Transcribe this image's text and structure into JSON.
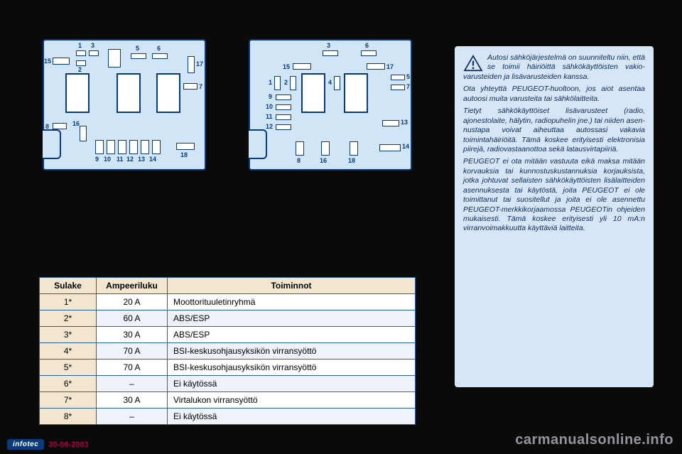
{
  "table": {
    "headers": [
      "Sulake",
      "Ampeeriluku",
      "Toiminnot"
    ],
    "rows": [
      [
        "1*",
        "20 A",
        "Moottorituuletinryhmä"
      ],
      [
        "2*",
        "60 A",
        "ABS/ESP"
      ],
      [
        "3*",
        "30 A",
        "ABS/ESP"
      ],
      [
        "4*",
        "70 A",
        "BSI-keskusohjausyksikön virransyöttö"
      ],
      [
        "5*",
        "70 A",
        "BSI-keskusohjausyksikön virransyöttö"
      ],
      [
        "6*",
        "–",
        "Ei käytössä"
      ],
      [
        "7*",
        "30 A",
        "Virtalukon virransyöttö"
      ],
      [
        "8*",
        "–",
        "Ei käytössä"
      ]
    ]
  },
  "infobox": {
    "p1": "Autosi sähköjärjestelmä on suunniteltu niin, että se toimii häiriöittä sähkökäyttöisten vakio­varusteiden ja lisävarus­teiden kanssa.",
    "p2": "Ota yhteyttä PEUGEOT-huoltoon, jos aiot asentaa autoosi muita varusteita tai sähkölaitteita.",
    "p3": "Tietyt sähkökäyttöiset lisävarus­teet (radio, ajonestolaite, hälytin, radiopuhelin jne.) tai niiden asen­nustapa voivat aiheuttaa autossa­si vakavia toimintahäiriöitä. Tämä koskee erityisesti elektronisia pii­rejä, radiovastaanottoa sekä latausvirtapiiriä.",
    "p4": "PEUGEOT ei ota mitään vastuuta eikä maksa mitään korvauksia tai kunnostuskustannuksia korjauk­sista, jotka johtuvat sellaisten sähkökäyttöisten lisälaitteiden asennuksesta tai käytöstä, joita PEUGEOT ei ole toimittanut tai suositellut ja joita ei ole asennettu PEUGEOT-merkkikorjaamossa PEUGEOTin ohjeiden mukaisesti. Tämä koskee erityisesti yli 10 mA:n virranvoimakkuutta käyttäviä laitteita."
  },
  "fusebox1_labels": [
    "1",
    "2",
    "3",
    "5",
    "6",
    "7",
    "8",
    "9",
    "10",
    "11",
    "12",
    "13",
    "14",
    "15",
    "16",
    "17",
    "18"
  ],
  "fusebox2_labels": [
    "1",
    "2",
    "3",
    "4",
    "5",
    "6",
    "7",
    "8",
    "9",
    "10",
    "11",
    "12",
    "13",
    "14",
    "15",
    "16",
    "17",
    "18"
  ],
  "footer": {
    "brand": "infotec",
    "date": "30-06-2003"
  },
  "watermark": "carmanualsonline.info",
  "colors": {
    "page_bg": "#0a0a0a",
    "panel_bg": "#d0e5f5",
    "panel_border": "#0a3a7a",
    "table_border": "#2b5fa8",
    "table_header_bg": "#f3e7d0",
    "table_stripe_bg": "#eef3fa",
    "info_bg": "#d6e6f7",
    "info_text": "#0a2a5a",
    "date_color": "#b00040"
  }
}
